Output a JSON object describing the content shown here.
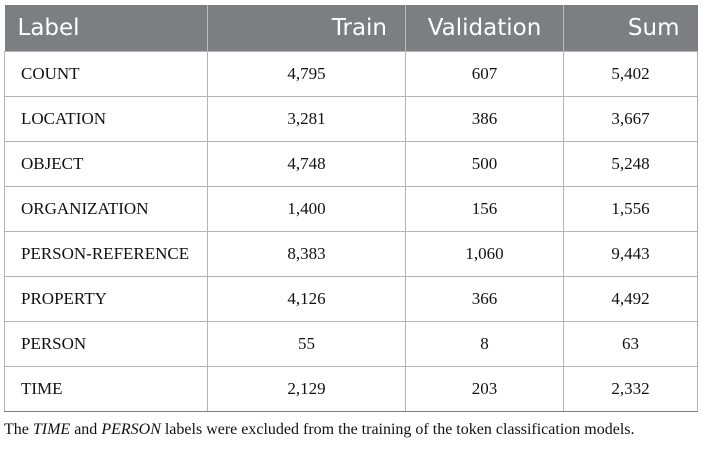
{
  "table": {
    "headers": [
      "Label",
      "Train",
      "Validation",
      "Sum"
    ],
    "rows": [
      [
        "COUNT",
        "4,795",
        "607",
        "5,402"
      ],
      [
        "LOCATION",
        "3,281",
        "386",
        "3,667"
      ],
      [
        "OBJECT",
        "4,748",
        "500",
        "5,248"
      ],
      [
        "ORGANIZATION",
        "1,400",
        "156",
        "1,556"
      ],
      [
        "PERSON-REFERENCE",
        "8,383",
        "1,060",
        "9,443"
      ],
      [
        "PROPERTY",
        "4,126",
        "366",
        "4,492"
      ],
      [
        "PERSON",
        "55",
        "8",
        "63"
      ],
      [
        "TIME",
        "2,129",
        "203",
        "2,332"
      ]
    ]
  },
  "footnote": {
    "part1": "The ",
    "time": "TIME",
    "part2": " and ",
    "person": "PERSON",
    "part3": " labels were excluded from the training of the token classification models."
  },
  "colors": {
    "header_bg": "#7d7e81",
    "header_text": "#ffffff",
    "grid": "#b3b3b3"
  }
}
